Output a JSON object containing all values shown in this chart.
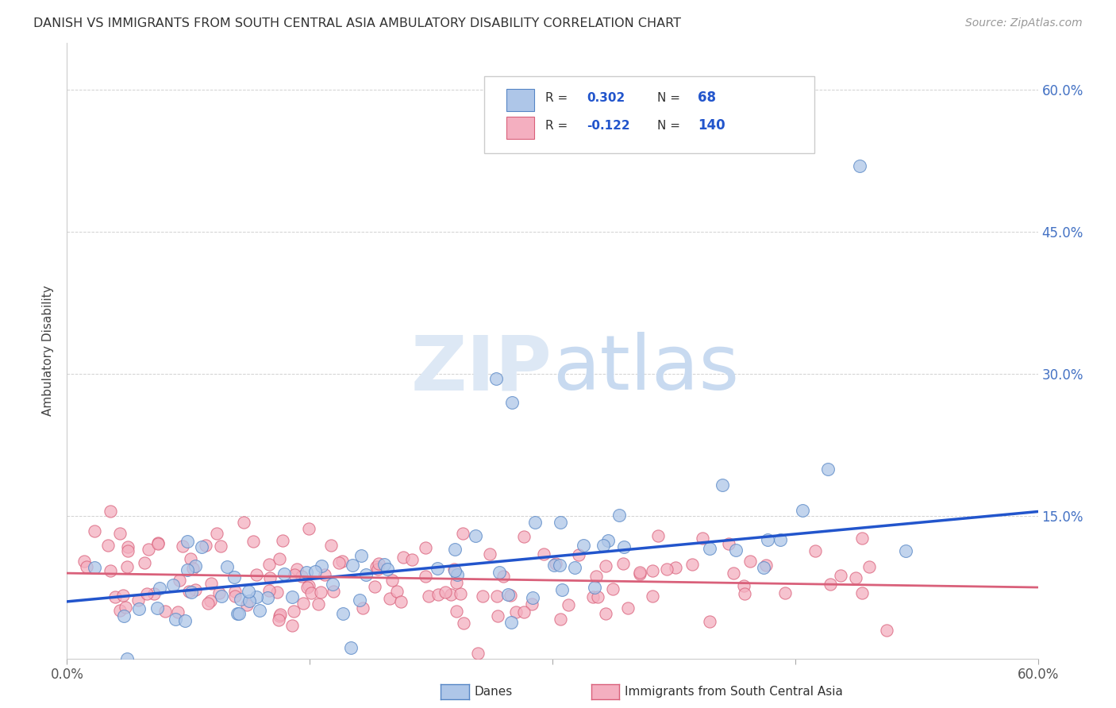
{
  "title": "DANISH VS IMMIGRANTS FROM SOUTH CENTRAL ASIA AMBULATORY DISABILITY CORRELATION CHART",
  "source": "Source: ZipAtlas.com",
  "ylabel": "Ambulatory Disability",
  "xlim": [
    0.0,
    0.6
  ],
  "ylim": [
    0.0,
    0.65
  ],
  "danes_R": 0.302,
  "danes_N": 68,
  "immigrants_R": -0.122,
  "immigrants_N": 140,
  "danes_color": "#aec6e8",
  "danes_edge_color": "#5585c5",
  "danes_line_color": "#2255cc",
  "immigrants_color": "#f4afc0",
  "immigrants_edge_color": "#d9607a",
  "immigrants_line_color": "#d9607a",
  "danes_line_y0": 0.06,
  "danes_line_y1": 0.155,
  "imm_line_y0": 0.09,
  "imm_line_y1": 0.075,
  "right_ytick_color": "#4472c4",
  "watermark_color": "#dde8f5",
  "background_color": "#ffffff",
  "grid_color": "#cccccc",
  "legend_label_danes": "Danes",
  "legend_label_immigrants": "Immigrants from South Central Asia"
}
